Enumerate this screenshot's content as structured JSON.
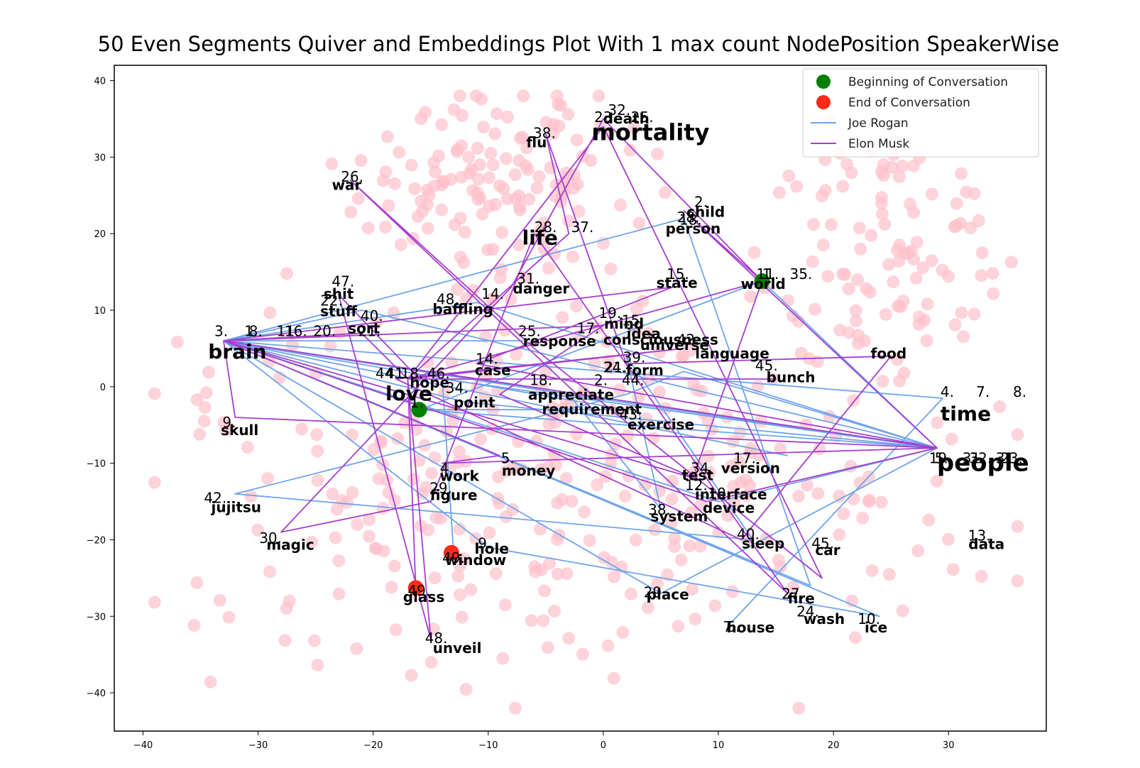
{
  "chart_data": {
    "type": "scatter",
    "title": "50 Even Segments Quiver and Embeddings Plot With 1 max count NodePosition SpeakerWise",
    "xlim": [
      -42.5,
      38.5
    ],
    "ylim": [
      -45,
      42
    ],
    "x_ticks": [
      -40,
      -30,
      -20,
      -10,
      0,
      10,
      20,
      30
    ],
    "x_tick_labels": [
      "−40",
      "−30",
      "−20",
      "−10",
      "0",
      "10",
      "20",
      "30"
    ],
    "y_ticks": [
      -40,
      -30,
      -20,
      -10,
      0,
      10,
      20,
      30,
      40
    ],
    "y_tick_labels": [
      "−40",
      "−30",
      "−20",
      "−10",
      "0",
      "10",
      "20",
      "30",
      "40"
    ],
    "grid": false,
    "legend_position": "top-right",
    "legend": [
      {
        "label": "Beginning of Conversation",
        "kind": "marker",
        "color": "#008000"
      },
      {
        "label": "End of Conversation",
        "kind": "marker",
        "color": "#ff2a1a"
      },
      {
        "label": "Joe Rogan",
        "kind": "line",
        "color": "#6fa4eb"
      },
      {
        "label": "Elon Musk",
        "kind": "line",
        "color": "#a63fcf"
      }
    ],
    "colors": {
      "background_points": "#ffc0cb",
      "joe_rogan": "#6fa4eb",
      "elon_musk": "#a63fcf",
      "start": "#008000",
      "end": "#ff2a1a"
    },
    "background_seed": 7,
    "background_count": 560,
    "words": [
      {
        "word": "mortality",
        "x": 4.1,
        "y": 32.2,
        "size": 32
      },
      {
        "word": "death",
        "x": 2.0,
        "y": 34.4,
        "size": 20
      },
      {
        "word": "flu",
        "x": -5.8,
        "y": 31.3,
        "size": 20
      },
      {
        "word": "war",
        "x": -22.3,
        "y": 25.7,
        "size": 20
      },
      {
        "word": "child",
        "x": 8.9,
        "y": 22.2,
        "size": 20
      },
      {
        "word": "person",
        "x": 7.8,
        "y": 20.0,
        "size": 20
      },
      {
        "word": "life",
        "x": -5.5,
        "y": 18.6,
        "size": 28
      },
      {
        "word": "world",
        "x": 13.9,
        "y": 12.8,
        "size": 20
      },
      {
        "word": "state",
        "x": 6.4,
        "y": 12.9,
        "size": 20
      },
      {
        "word": "danger",
        "x": -5.4,
        "y": 12.2,
        "size": 20
      },
      {
        "word": "shit",
        "x": -23.0,
        "y": 11.5,
        "size": 20
      },
      {
        "word": "stuff",
        "x": -23.0,
        "y": 9.2,
        "size": 20
      },
      {
        "word": "baffling",
        "x": -12.2,
        "y": 9.5,
        "size": 20
      },
      {
        "word": "sort",
        "x": -20.8,
        "y": 7.0,
        "size": 20
      },
      {
        "word": "mind",
        "x": 1.8,
        "y": 7.6,
        "size": 20
      },
      {
        "word": "idea",
        "x": 3.5,
        "y": 6.3,
        "size": 20
      },
      {
        "word": "consciousness",
        "x": 5.0,
        "y": 5.5,
        "size": 20
      },
      {
        "word": "universe",
        "x": 6.2,
        "y": 4.8,
        "size": 20
      },
      {
        "word": "response",
        "x": -3.8,
        "y": 5.3,
        "size": 20
      },
      {
        "word": "language",
        "x": 11.2,
        "y": 3.7,
        "size": 20
      },
      {
        "word": "food",
        "x": 24.8,
        "y": 3.7,
        "size": 20
      },
      {
        "word": "brain",
        "x": -31.8,
        "y": 3.7,
        "size": 28
      },
      {
        "word": "case",
        "x": -9.6,
        "y": 1.5,
        "size": 20
      },
      {
        "word": "form",
        "x": 3.6,
        "y": 1.5,
        "size": 20
      },
      {
        "word": "bunch",
        "x": 16.3,
        "y": 0.6,
        "size": 20
      },
      {
        "word": "hope",
        "x": -15.1,
        "y": -0.1,
        "size": 20
      },
      {
        "word": "love",
        "x": -16.9,
        "y": -1.8,
        "size": 28
      },
      {
        "word": "appreciate",
        "x": -2.8,
        "y": -1.7,
        "size": 20
      },
      {
        "word": "point",
        "x": -11.2,
        "y": -2.7,
        "size": 20
      },
      {
        "word": "requirement",
        "x": -1.0,
        "y": -3.6,
        "size": 20
      },
      {
        "word": "exercise",
        "x": 5.0,
        "y": -5.6,
        "size": 20
      },
      {
        "word": "time",
        "x": 31.5,
        "y": -4.4,
        "size": 28
      },
      {
        "word": "people",
        "x": 33.0,
        "y": -11.0,
        "size": 34
      },
      {
        "word": "skull",
        "x": -31.6,
        "y": -6.3,
        "size": 20
      },
      {
        "word": "version",
        "x": 12.8,
        "y": -11.3,
        "size": 20
      },
      {
        "word": "test",
        "x": 8.2,
        "y": -12.2,
        "size": 20
      },
      {
        "word": "work",
        "x": -12.5,
        "y": -12.3,
        "size": 20
      },
      {
        "word": "money",
        "x": -6.5,
        "y": -11.6,
        "size": 20
      },
      {
        "word": "interface",
        "x": 11.1,
        "y": -14.7,
        "size": 20
      },
      {
        "word": "device",
        "x": 10.9,
        "y": -16.5,
        "size": 20
      },
      {
        "word": "system",
        "x": 6.6,
        "y": -17.6,
        "size": 20
      },
      {
        "word": "figure",
        "x": -13.0,
        "y": -14.8,
        "size": 20
      },
      {
        "word": "jujitsu",
        "x": -31.9,
        "y": -16.4,
        "size": 20
      },
      {
        "word": "magic",
        "x": -27.2,
        "y": -21.3,
        "size": 20
      },
      {
        "word": "sleep",
        "x": 13.9,
        "y": -21.1,
        "size": 20
      },
      {
        "word": "car",
        "x": 19.5,
        "y": -22.0,
        "size": 20
      },
      {
        "word": "data",
        "x": 33.3,
        "y": -21.2,
        "size": 20
      },
      {
        "word": "hole",
        "x": -9.7,
        "y": -21.8,
        "size": 20
      },
      {
        "word": "window",
        "x": -11.1,
        "y": -23.3,
        "size": 20
      },
      {
        "word": "glass",
        "x": -15.6,
        "y": -28.1,
        "size": 20
      },
      {
        "word": "place",
        "x": 5.6,
        "y": -27.8,
        "size": 20
      },
      {
        "word": "fire",
        "x": 17.2,
        "y": -28.3,
        "size": 20
      },
      {
        "word": "wash",
        "x": 19.2,
        "y": -31.0,
        "size": 20
      },
      {
        "word": "ice",
        "x": 23.7,
        "y": -32.1,
        "size": 20
      },
      {
        "word": "house",
        "x": 12.8,
        "y": -32.1,
        "size": 20
      },
      {
        "word": "unveil",
        "x": -12.7,
        "y": -34.8,
        "size": 20
      }
    ],
    "numbers": [
      {
        "text": "32.",
        "x": 0.4,
        "y": 35.5
      },
      {
        "text": "23.",
        "x": -0.8,
        "y": 34.6
      },
      {
        "text": "25.",
        "x": 2.4,
        "y": 34.6
      },
      {
        "text": "38.",
        "x": -6.1,
        "y": 32.5
      },
      {
        "text": "26.",
        "x": -22.8,
        "y": 26.8
      },
      {
        "text": "2.",
        "x": 7.9,
        "y": 23.5
      },
      {
        "text": "28.",
        "x": 6.4,
        "y": 21.5
      },
      {
        "text": "18.",
        "x": 6.6,
        "y": 21.2
      },
      {
        "text": "28.",
        "x": -6.0,
        "y": 20.2
      },
      {
        "text": "37.",
        "x": -2.8,
        "y": 20.2
      },
      {
        "text": "11.",
        "x": 13.3,
        "y": 14.1
      },
      {
        "text": "1.",
        "x": 13.8,
        "y": 14.1
      },
      {
        "text": "35.",
        "x": 16.2,
        "y": 14.1
      },
      {
        "text": "15.",
        "x": 5.5,
        "y": 14.1
      },
      {
        "text": "31.",
        "x": -7.5,
        "y": 13.5
      },
      {
        "text": "47.",
        "x": -23.6,
        "y": 13.1
      },
      {
        "text": "14.",
        "x": -10.6,
        "y": 11.5
      },
      {
        "text": "48.",
        "x": -14.5,
        "y": 10.8
      },
      {
        "text": "22.",
        "x": -24.6,
        "y": 10.6
      },
      {
        "text": "40.",
        "x": -21.1,
        "y": 8.6
      },
      {
        "text": "19.",
        "x": -0.4,
        "y": 9.0
      },
      {
        "text": "15.",
        "x": 1.6,
        "y": 8.0
      },
      {
        "text": "17.",
        "x": -2.3,
        "y": 7.0
      },
      {
        "text": "25.",
        "x": -7.4,
        "y": 6.6
      },
      {
        "text": "42.",
        "x": 6.4,
        "y": 5.5
      },
      {
        "text": "3.",
        "x": -33.8,
        "y": 6.6
      },
      {
        "text": "1.",
        "x": -31.2,
        "y": 6.6
      },
      {
        "text": "8.",
        "x": -30.8,
        "y": 6.6
      },
      {
        "text": "11.",
        "x": -28.4,
        "y": 6.6
      },
      {
        "text": "16.",
        "x": -27.7,
        "y": 6.6
      },
      {
        "text": "20.",
        "x": -25.2,
        "y": 6.6
      },
      {
        "text": "21.",
        "x": -21.3,
        "y": 6.6
      },
      {
        "text": "39.",
        "x": 1.7,
        "y": 3.2
      },
      {
        "text": "14.",
        "x": -11.1,
        "y": 3.0
      },
      {
        "text": "24.",
        "x": 0.0,
        "y": 1.9
      },
      {
        "text": "21.",
        "x": 0.1,
        "y": 1.9
      },
      {
        "text": "45.",
        "x": 13.2,
        "y": 2.1
      },
      {
        "text": "44.",
        "x": -19.8,
        "y": 1.1
      },
      {
        "text": "41.",
        "x": -18.9,
        "y": 1.1
      },
      {
        "text": "18.",
        "x": -17.6,
        "y": 1.1
      },
      {
        "text": "46.",
        "x": -15.3,
        "y": 1.1
      },
      {
        "text": "18.",
        "x": -6.4,
        "y": 0.2
      },
      {
        "text": "2.",
        "x": -0.8,
        "y": 0.2
      },
      {
        "text": "44.",
        "x": 1.6,
        "y": 0.2
      },
      {
        "text": "34.",
        "x": -13.7,
        "y": -0.8
      },
      {
        "text": "1.",
        "x": -16.8,
        "y": -2.7
      },
      {
        "text": "4.",
        "x": 29.3,
        "y": -1.3
      },
      {
        "text": "7.",
        "x": 32.4,
        "y": -1.3
      },
      {
        "text": "8.",
        "x": 35.6,
        "y": -1.3
      },
      {
        "text": "43.",
        "x": 1.4,
        "y": -4.3
      },
      {
        "text": "9.",
        "x": -33.1,
        "y": -5.3
      },
      {
        "text": "19.",
        "x": 28.3,
        "y": -10.0
      },
      {
        "text": "5.",
        "x": 28.8,
        "y": -10.0
      },
      {
        "text": "31.",
        "x": 31.2,
        "y": -10.0
      },
      {
        "text": "32.",
        "x": 31.8,
        "y": -10.0
      },
      {
        "text": "3.",
        "x": 34.1,
        "y": -10.0
      },
      {
        "text": "23.",
        "x": 34.5,
        "y": -10.0
      },
      {
        "text": "17.",
        "x": 11.3,
        "y": -10.0
      },
      {
        "text": "34.",
        "x": 7.6,
        "y": -11.3
      },
      {
        "text": "4.",
        "x": -14.2,
        "y": -11.3
      },
      {
        "text": "5.",
        "x": -8.9,
        "y": -10.0
      },
      {
        "text": "12.",
        "x": 7.1,
        "y": -13.5
      },
      {
        "text": "10.",
        "x": 9.1,
        "y": -14.6
      },
      {
        "text": "29.",
        "x": -15.1,
        "y": -13.9
      },
      {
        "text": "42.",
        "x": -34.7,
        "y": -15.2
      },
      {
        "text": "38.",
        "x": 3.9,
        "y": -16.7
      },
      {
        "text": "40.",
        "x": 11.6,
        "y": -19.9
      },
      {
        "text": "30.",
        "x": -29.9,
        "y": -20.4
      },
      {
        "text": "45.",
        "x": 18.1,
        "y": -21.1
      },
      {
        "text": "13.",
        "x": 31.7,
        "y": -20.1
      },
      {
        "text": "9.",
        "x": -10.9,
        "y": -21.1
      },
      {
        "text": "49.",
        "x": -14.0,
        "y": -23.0
      },
      {
        "text": "49.",
        "x": -17.0,
        "y": -27.3
      },
      {
        "text": "29.",
        "x": 3.5,
        "y": -27.5
      },
      {
        "text": "27.",
        "x": 15.5,
        "y": -27.7
      },
      {
        "text": "24.",
        "x": 16.8,
        "y": -30.0
      },
      {
        "text": "10.",
        "x": 22.1,
        "y": -31.0
      },
      {
        "text": "7.",
        "x": 10.4,
        "y": -32.0
      },
      {
        "text": "6.",
        "x": 10.7,
        "y": -32.0
      },
      {
        "text": "48.",
        "x": -15.5,
        "y": -33.5
      }
    ],
    "markers": [
      {
        "kind": "start",
        "x": -16.0,
        "y": -3.0
      },
      {
        "kind": "start",
        "x": 13.8,
        "y": 13.8
      },
      {
        "kind": "end",
        "x": -13.2,
        "y": -21.7
      },
      {
        "kind": "end",
        "x": -16.3,
        "y": -26.3
      }
    ],
    "series": [
      {
        "name": "Joe Rogan",
        "color": "#6fa4eb",
        "points": [
          [
            -16.0,
            -3.0
          ],
          [
            2.0,
            -3.0
          ],
          [
            -33.0,
            6.0
          ],
          [
            29.5,
            -1.5
          ],
          [
            -33.0,
            6.0
          ],
          [
            29.5,
            -1.5
          ],
          [
            11.0,
            -31.0
          ],
          [
            29.5,
            -1.5
          ],
          [
            -33.0,
            6.0
          ],
          [
            -10.0,
            -21.0
          ],
          [
            24.0,
            -30.0
          ],
          [
            -33.0,
            6.0
          ],
          [
            10.0,
            -15.0
          ],
          [
            29.0,
            -8.0
          ],
          [
            -11.0,
            11.0
          ],
          [
            -33.0,
            6.0
          ],
          [
            -12.0,
            -2.0
          ],
          [
            -33.0,
            6.0
          ],
          [
            16.0,
            -9.0
          ],
          [
            -33.0,
            6.0
          ],
          [
            -3.0,
            -1.0
          ],
          [
            29.0,
            -8.0
          ],
          [
            -33.0,
            6.0
          ],
          [
            29.0,
            -8.0
          ],
          [
            -21.0,
            10.0
          ],
          [
            -33.0,
            6.0
          ],
          [
            -7.0,
            6.0
          ],
          [
            -33.0,
            6.0
          ],
          [
            18.0,
            -26.0
          ],
          [
            7.0,
            22.0
          ],
          [
            -33.0,
            6.0
          ],
          [
            5.0,
            -27.0
          ],
          [
            29.0,
            -8.0
          ],
          [
            -12.0,
            -2.0
          ],
          [
            29.0,
            -8.0
          ],
          [
            -16.0,
            -3.0
          ],
          [
            13.8,
            13.8
          ],
          [
            29.0,
            -8.0
          ],
          [
            -3.0,
            -1.0
          ],
          [
            5.0,
            -16.0
          ],
          [
            2.0,
            4.0
          ],
          [
            13.0,
            -20.0
          ],
          [
            -32.0,
            -14.0
          ],
          [
            2.0,
            -1.0
          ],
          [
            7.0,
            2.0
          ],
          [
            29.0,
            -8.0
          ],
          [
            -14.0,
            1.0
          ],
          [
            -13.0,
            -22.0
          ]
        ]
      },
      {
        "name": "Elon Musk",
        "color": "#a63fcf",
        "points": [
          [
            13.8,
            13.8
          ],
          [
            7.0,
            23.0
          ],
          [
            29.0,
            -8.0
          ],
          [
            -14.0,
            -10.0
          ],
          [
            -9.0,
            -9.0
          ],
          [
            -33.0,
            6.0
          ],
          [
            29.0,
            -8.0
          ],
          [
            -33.0,
            6.0
          ],
          [
            -32.0,
            -4.0
          ],
          [
            29.0,
            -8.0
          ],
          [
            -33.0,
            6.0
          ],
          [
            9.0,
            -15.0
          ],
          [
            29.0,
            -8.0
          ],
          [
            -11.0,
            3.0
          ],
          [
            6.0,
            13.0
          ],
          [
            -33.0,
            6.0
          ],
          [
            8.0,
            -12.0
          ],
          [
            -9.0,
            -1.0
          ],
          [
            0.0,
            8.0
          ],
          [
            -33.0,
            6.0
          ],
          [
            -21.0,
            7.0
          ],
          [
            -17.0,
            1.0
          ],
          [
            0.0,
            34.0
          ],
          [
            19.0,
            -25.0
          ],
          [
            -6.0,
            5.0
          ],
          [
            -22.0,
            27.0
          ],
          [
            16.0,
            -27.0
          ],
          [
            -6.0,
            20.0
          ],
          [
            -15.0,
            -15.0
          ],
          [
            -28.0,
            -19.0
          ],
          [
            -8.0,
            13.0
          ],
          [
            0.0,
            35.0
          ],
          [
            13.8,
            13.8
          ],
          [
            8.0,
            -11.0
          ],
          [
            13.8,
            13.8
          ],
          [
            -17.0,
            1.0
          ],
          [
            -3.0,
            20.0
          ],
          [
            -5.0,
            33.0
          ],
          [
            2.0,
            3.0
          ],
          [
            25.0,
            4.0
          ],
          [
            12.0,
            -20.0
          ],
          [
            -18.0,
            1.0
          ],
          [
            7.0,
            5.0
          ],
          [
            -17.0,
            1.0
          ],
          [
            15.0,
            1.0
          ],
          [
            -16.0,
            1.0
          ],
          [
            -23.0,
            12.0
          ],
          [
            -15.0,
            -33.0
          ],
          [
            -17.0,
            1.0
          ],
          [
            -16.3,
            -26.3
          ]
        ]
      }
    ]
  }
}
